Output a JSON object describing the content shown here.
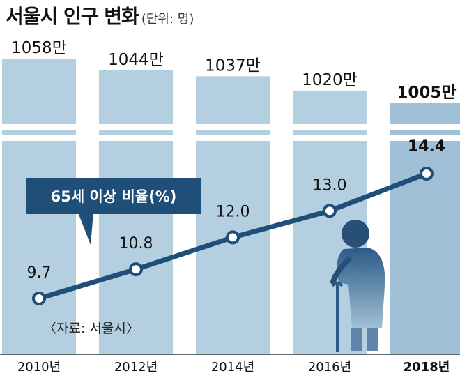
{
  "title": "서울시 인구 변화",
  "unit_note": "(단위: 명)",
  "legend_label": "65세 이상 비율(%)",
  "source": "〈자료: 서울시〉",
  "colors": {
    "bar_fill": "#b4cfe0",
    "bar_highlight": "#9fc0d6",
    "line": "#1f4e79",
    "marker_fill": "#ffffff",
    "text": "#111111"
  },
  "chart_data": [
    {
      "type": "bar",
      "title": "서울시 인구 변화",
      "unit": "(단위: 명)",
      "categories": [
        "2010년",
        "2012년",
        "2014년",
        "2016년",
        "2018년"
      ],
      "values": [
        10580000,
        10440000,
        10370000,
        10200000,
        10050000
      ],
      "labels": [
        "1058만",
        "1044만",
        "1037만",
        "1020만",
        "1005만"
      ],
      "highlight_index": 4,
      "axis_break": true
    },
    {
      "type": "line",
      "series": [
        {
          "name": "65세 이상 비율(%)",
          "values": [
            9.7,
            10.8,
            12.0,
            13.0,
            14.4
          ]
        }
      ],
      "labels": [
        "9.7",
        "10.8",
        "12.0",
        "13.0",
        "14.4"
      ],
      "categories": [
        "2010년",
        "2012년",
        "2014년",
        "2016년",
        "2018년"
      ]
    }
  ]
}
